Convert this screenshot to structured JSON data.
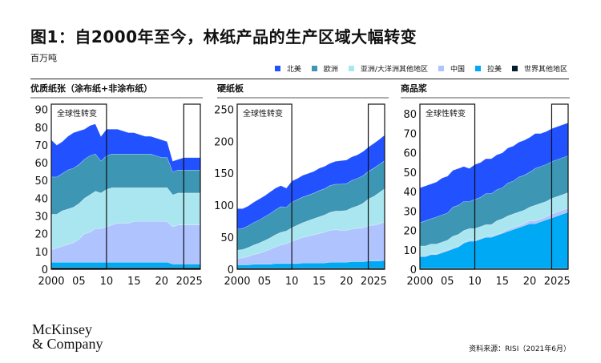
{
  "header": {
    "title": "图1：自2000年至今，林纸产品的生产区域大幅转变",
    "unit": "百万吨"
  },
  "legend": [
    {
      "name": "北美",
      "color": "#2251ff"
    },
    {
      "name": "欧洲",
      "color": "#3c96b4"
    },
    {
      "name": "亚洲/大洋洲其他地区",
      "color": "#aae6f0"
    },
    {
      "name": "中国",
      "color": "#afc3ff"
    },
    {
      "name": "拉美",
      "color": "#00a9f4"
    },
    {
      "name": "世界其他地区",
      "color": "#051c2c"
    }
  ],
  "footer": {
    "logo_line1": "McKinsey",
    "logo_line2": "& Company",
    "source": "资料来源：RISI（2021年6月）"
  },
  "chart_data": [
    {
      "type": "area",
      "stacked": true,
      "title": "优质纸张（涂布纸+非涂布纸）",
      "x": [
        2000,
        2001,
        2002,
        2003,
        2004,
        2005,
        2006,
        2007,
        2008,
        2009,
        2010,
        2011,
        2012,
        2013,
        2014,
        2015,
        2016,
        2017,
        2018,
        2019,
        2020,
        2021,
        2022,
        2023,
        2024,
        2025,
        2026,
        2027
      ],
      "xlim": [
        2000,
        2027
      ],
      "xticks": [
        "2000",
        "05",
        "10",
        "15",
        "20",
        "2025"
      ],
      "xtick_values": [
        2000,
        2005,
        2010,
        2015,
        2020,
        2025
      ],
      "yticks": [
        0,
        10,
        20,
        30,
        40,
        50,
        60,
        70,
        80,
        90
      ],
      "ylim": [
        0,
        93
      ],
      "grid": false,
      "annotation": {
        "label": "全球性转变",
        "range": [
          2000,
          2010
        ]
      },
      "highlight_range": [
        2024,
        2027
      ],
      "series": [
        {
          "name": "世界其他地区",
          "values": [
            1,
            1,
            1,
            1,
            1,
            1,
            1,
            1,
            1,
            1,
            1,
            1,
            1,
            1,
            1,
            1,
            1,
            1,
            1,
            1,
            1,
            1,
            1,
            1,
            1,
            1,
            1,
            1
          ]
        },
        {
          "name": "拉美",
          "values": [
            3,
            3,
            3,
            3,
            3,
            3,
            3,
            3,
            3,
            3,
            3,
            3,
            3,
            3,
            3,
            3,
            3,
            3,
            3,
            3,
            3,
            3,
            2,
            2,
            2,
            2,
            2,
            2
          ]
        },
        {
          "name": "中国",
          "values": [
            7,
            8,
            9,
            10,
            11,
            13,
            16,
            17,
            19,
            19,
            20,
            21,
            22,
            22,
            22,
            23,
            23,
            23,
            23,
            23,
            23,
            23,
            21,
            22,
            22,
            22,
            22,
            22
          ]
        },
        {
          "name": "亚洲/大洋洲其他地区",
          "values": [
            20,
            19,
            20,
            20,
            20,
            20,
            20,
            21,
            21,
            20,
            21,
            21,
            20,
            20,
            20,
            19,
            19,
            19,
            19,
            19,
            19,
            19,
            18,
            18,
            18,
            18,
            18,
            18
          ]
        },
        {
          "name": "欧洲",
          "values": [
            21,
            21,
            21,
            22,
            22,
            22,
            22,
            22,
            21,
            18,
            19,
            19,
            19,
            19,
            19,
            19,
            19,
            19,
            19,
            18,
            17,
            17,
            13,
            13,
            13,
            13,
            13,
            13
          ]
        },
        {
          "name": "北美",
          "values": [
            21,
            18,
            18,
            19,
            20,
            19,
            17,
            17,
            17,
            14,
            15,
            14,
            14,
            13,
            12,
            12,
            11,
            10,
            10,
            10,
            10,
            9,
            6,
            6,
            7,
            7,
            7,
            7
          ]
        }
      ]
    },
    {
      "type": "area",
      "stacked": true,
      "title": "硬纸板",
      "x": [
        2000,
        2001,
        2002,
        2003,
        2004,
        2005,
        2006,
        2007,
        2008,
        2009,
        2010,
        2011,
        2012,
        2013,
        2014,
        2015,
        2016,
        2017,
        2018,
        2019,
        2020,
        2021,
        2022,
        2023,
        2024,
        2025,
        2026,
        2027
      ],
      "xlim": [
        2000,
        2027
      ],
      "xticks": [
        "2000",
        "05",
        "10",
        "15",
        "20",
        "2025"
      ],
      "xtick_values": [
        2000,
        2005,
        2010,
        2015,
        2020,
        2025
      ],
      "yticks": [
        0,
        50,
        100,
        150,
        200,
        250
      ],
      "ylim": [
        0,
        258
      ],
      "grid": false,
      "annotation": {
        "label": "全球性转变",
        "range": [
          2000,
          2010
        ]
      },
      "highlight_range": [
        2024,
        2027
      ],
      "series": [
        {
          "name": "世界其他地区",
          "values": [
            2,
            2,
            2,
            2,
            2,
            2,
            2,
            2,
            2,
            2,
            2,
            2,
            2,
            2,
            2,
            2,
            2,
            2,
            2,
            2,
            2,
            2,
            2,
            2,
            2,
            2,
            2,
            2
          ]
        },
        {
          "name": "拉美",
          "values": [
            5,
            5,
            5,
            6,
            6,
            6,
            6,
            7,
            7,
            7,
            7,
            7,
            8,
            8,
            8,
            8,
            8,
            9,
            9,
            9,
            9,
            10,
            10,
            10,
            11,
            11,
            11,
            12
          ]
        },
        {
          "name": "中国",
          "values": [
            10,
            11,
            13,
            15,
            17,
            20,
            23,
            26,
            29,
            31,
            35,
            38,
            40,
            42,
            44,
            46,
            48,
            50,
            51,
            50,
            50,
            51,
            52,
            53,
            55,
            56,
            58,
            60
          ]
        },
        {
          "name": "亚洲/大洋洲其他地区",
          "values": [
            13,
            13,
            14,
            15,
            16,
            17,
            18,
            19,
            20,
            20,
            21,
            22,
            23,
            24,
            25,
            26,
            27,
            28,
            29,
            30,
            31,
            33,
            35,
            38,
            42,
            45,
            49,
            52
          ]
        },
        {
          "name": "欧洲",
          "values": [
            33,
            33,
            34,
            35,
            36,
            37,
            38,
            39,
            40,
            37,
            40,
            40,
            40,
            40,
            40,
            41,
            41,
            42,
            42,
            42,
            42,
            43,
            43,
            43,
            43,
            44,
            44,
            44
          ]
        },
        {
          "name": "北美",
          "values": [
            32,
            31,
            31,
            32,
            33,
            33,
            34,
            34,
            33,
            30,
            33,
            33,
            34,
            34,
            34,
            35,
            35,
            35,
            36,
            37,
            37,
            37,
            37,
            38,
            38,
            39,
            39,
            40
          ]
        }
      ]
    },
    {
      "type": "area",
      "stacked": true,
      "title": "商品浆",
      "x": [
        2000,
        2001,
        2002,
        2003,
        2004,
        2005,
        2006,
        2007,
        2008,
        2009,
        2010,
        2011,
        2012,
        2013,
        2014,
        2015,
        2016,
        2017,
        2018,
        2019,
        2020,
        2021,
        2022,
        2023,
        2024,
        2025,
        2026,
        2027
      ],
      "xlim": [
        2000,
        2027
      ],
      "xticks": [
        "2000",
        "05",
        "10",
        "15",
        "20",
        "2025"
      ],
      "xtick_values": [
        2000,
        2005,
        2010,
        2015,
        2020,
        2025
      ],
      "yticks": [
        0,
        10,
        20,
        30,
        40,
        50,
        60,
        70,
        80
      ],
      "ylim": [
        0,
        85
      ],
      "grid": false,
      "annotation": {
        "label": "全球性转变",
        "range": [
          2000,
          2010
        ]
      },
      "highlight_range": [
        2024,
        2027
      ],
      "series": [
        {
          "name": "世界其他地区",
          "values": [
            0.5,
            0.5,
            0.5,
            0.5,
            0.5,
            0.5,
            0.5,
            0.5,
            0.5,
            0.5,
            0.5,
            0.5,
            0.5,
            0.5,
            0.5,
            0.5,
            0.5,
            0.5,
            0.5,
            0.5,
            0.5,
            0.5,
            0.5,
            0.5,
            0.5,
            0.5,
            0.5,
            0.5
          ]
        },
        {
          "name": "拉美",
          "values": [
            6,
            6,
            7,
            7,
            8,
            9,
            10,
            11,
            13,
            14,
            14,
            15,
            16,
            16,
            17,
            18,
            19,
            20,
            21,
            22,
            23,
            23,
            24,
            25,
            26,
            27,
            28,
            29
          ]
        },
        {
          "name": "中国",
          "values": [
            0.5,
            0.5,
            0.5,
            0.5,
            0.5,
            0.5,
            0.5,
            0.5,
            0.5,
            0.5,
            0.5,
            0.5,
            0.5,
            0.5,
            0.5,
            0.5,
            1,
            1,
            1,
            1,
            1.5,
            1.5,
            1.5,
            1.5,
            2,
            2,
            2,
            2
          ]
        },
        {
          "name": "亚洲/大洋洲其他地区",
          "values": [
            5,
            5,
            5,
            5,
            5,
            5,
            6,
            6,
            6,
            6,
            6,
            6,
            6,
            6,
            7,
            7,
            7,
            7,
            7,
            7,
            7,
            8,
            8,
            8,
            8,
            8,
            8,
            8
          ]
        },
        {
          "name": "欧洲",
          "values": [
            12,
            13,
            13,
            14,
            14,
            14,
            15,
            15,
            15,
            14,
            15,
            15,
            16,
            16,
            16,
            16,
            17,
            17,
            18,
            18,
            18,
            19,
            19,
            19,
            19,
            19,
            19,
            19
          ]
        },
        {
          "name": "北美",
          "values": [
            18,
            18,
            18,
            18,
            19,
            19,
            19,
            19,
            18,
            17,
            18,
            18,
            18,
            18,
            18,
            18,
            18,
            18,
            18,
            18,
            18,
            18,
            17,
            17,
            17,
            17,
            17,
            17
          ]
        }
      ]
    }
  ]
}
